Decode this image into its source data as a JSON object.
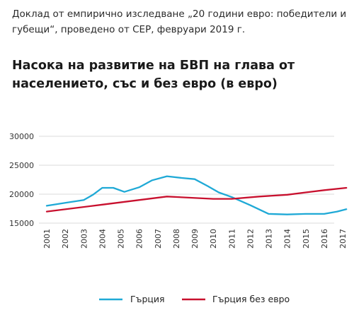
{
  "header": {
    "source_line": "Доклад от емпирично изследване „20 години евро: победители и губещи“, проведено от CEP, февруари 2019 г.",
    "title": "Насока на развитие на БВП на глава от населението, със и без евро (в евро)"
  },
  "chart_data": {
    "type": "line",
    "title": "Насока на развитие на БВП на глава от населението, със и без евро (в евро)",
    "xlabel": "",
    "ylabel": "",
    "xlim": [
      2001,
      2017
    ],
    "ylim": [
      15000,
      30000
    ],
    "yticks": [
      15000,
      20000,
      25000,
      30000
    ],
    "ytick_labels": [
      "15000",
      "20000",
      "25000",
      "30000"
    ],
    "xtick_labels": [
      "2001",
      "2002",
      "2003",
      "2004",
      "2005",
      "2006",
      "2007",
      "2008",
      "2009",
      "2010",
      "2011",
      "2012",
      "2013",
      "2014",
      "2015",
      "2016",
      "2017"
    ],
    "grid": true,
    "legend_position": "bottom",
    "series": [
      {
        "name": "Гърция",
        "color": "#1fa9d6",
        "points": [
          [
            2001,
            18000
          ],
          [
            2002,
            18500
          ],
          [
            2003,
            19000
          ],
          [
            2003.5,
            19900
          ],
          [
            2004,
            21100
          ],
          [
            2004.6,
            21100
          ],
          [
            2005.2,
            20400
          ],
          [
            2006,
            21200
          ],
          [
            2006.7,
            22400
          ],
          [
            2007.5,
            23100
          ],
          [
            2008.3,
            22800
          ],
          [
            2009,
            22600
          ],
          [
            2009.7,
            21400
          ],
          [
            2010.3,
            20300
          ],
          [
            2011,
            19500
          ],
          [
            2012,
            18100
          ],
          [
            2013,
            16600
          ],
          [
            2014,
            16500
          ],
          [
            2015,
            16600
          ],
          [
            2016,
            16600
          ],
          [
            2016.7,
            17000
          ],
          [
            2017.2,
            17400
          ]
        ]
      },
      {
        "name": "Гърция без евро",
        "color": "#c8102e",
        "points": [
          [
            2001,
            17000
          ],
          [
            2004,
            18200
          ],
          [
            2007.5,
            19600
          ],
          [
            2010,
            19200
          ],
          [
            2011,
            19200
          ],
          [
            2012.5,
            19600
          ],
          [
            2014,
            19900
          ],
          [
            2015,
            20300
          ],
          [
            2016,
            20700
          ],
          [
            2017.2,
            21100
          ]
        ]
      }
    ]
  }
}
